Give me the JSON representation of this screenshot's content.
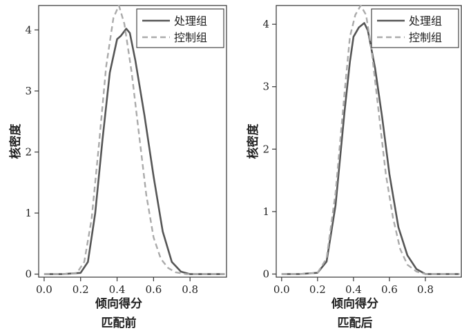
{
  "colors": {
    "treated": "#555555",
    "control": "#aaaaaa",
    "axis": "#333333"
  },
  "chart_data": [
    {
      "type": "line",
      "subtitle": "匹配前",
      "xlabel": "倾向得分",
      "ylabel": "核密度",
      "xlim": [
        -0.03,
        1.0
      ],
      "ylim": [
        -0.05,
        4.4
      ],
      "xticks": [
        "0.0",
        "0.2",
        "0.4",
        "0.6",
        "0.8"
      ],
      "yticks": [
        "0",
        "1",
        "2",
        "3",
        "4"
      ],
      "legend": "top-right",
      "series": [
        {
          "name": "处理组",
          "style": "solid",
          "x": [
            0.0,
            0.1,
            0.2,
            0.24,
            0.28,
            0.32,
            0.36,
            0.4,
            0.42,
            0.45,
            0.47,
            0.5,
            0.55,
            0.6,
            0.65,
            0.7,
            0.75,
            0.8,
            0.9,
            0.99
          ],
          "y": [
            0.0,
            0.0,
            0.02,
            0.2,
            1.0,
            2.2,
            3.3,
            3.85,
            3.9,
            4.02,
            3.95,
            3.5,
            2.6,
            1.6,
            0.7,
            0.2,
            0.04,
            0.0,
            0.0,
            0.0
          ]
        },
        {
          "name": "控制组",
          "style": "dashed",
          "x": [
            0.0,
            0.1,
            0.18,
            0.22,
            0.26,
            0.3,
            0.34,
            0.38,
            0.41,
            0.44,
            0.48,
            0.52,
            0.56,
            0.6,
            0.64,
            0.68,
            0.72,
            0.78,
            0.9,
            0.99
          ],
          "y": [
            0.0,
            0.0,
            0.02,
            0.2,
            0.9,
            2.1,
            3.4,
            4.2,
            4.4,
            4.1,
            3.3,
            2.3,
            1.3,
            0.6,
            0.25,
            0.1,
            0.03,
            0.0,
            0.0,
            0.0
          ]
        }
      ]
    },
    {
      "type": "line",
      "subtitle": "匹配后",
      "xlabel": "倾向得分",
      "ylabel": "核密度",
      "xlim": [
        -0.03,
        1.0
      ],
      "ylim": [
        -0.05,
        4.3
      ],
      "xticks": [
        "0.0",
        "0.2",
        "0.4",
        "0.6",
        "0.8"
      ],
      "yticks": [
        "0",
        "1",
        "2",
        "3",
        "4"
      ],
      "legend": "top-right",
      "series": [
        {
          "name": "处理组",
          "style": "solid",
          "x": [
            0.0,
            0.1,
            0.2,
            0.25,
            0.3,
            0.35,
            0.38,
            0.4,
            0.43,
            0.46,
            0.48,
            0.52,
            0.56,
            0.6,
            0.65,
            0.7,
            0.75,
            0.8,
            0.9,
            0.99
          ],
          "y": [
            0.0,
            0.0,
            0.02,
            0.2,
            1.1,
            2.6,
            3.4,
            3.8,
            3.95,
            4.02,
            3.9,
            3.3,
            2.5,
            1.6,
            0.75,
            0.3,
            0.08,
            0.0,
            0.0,
            0.0
          ]
        },
        {
          "name": "控制组",
          "style": "dashed",
          "x": [
            0.0,
            0.1,
            0.2,
            0.25,
            0.3,
            0.35,
            0.38,
            0.41,
            0.44,
            0.47,
            0.5,
            0.54,
            0.58,
            0.62,
            0.66,
            0.7,
            0.75,
            0.8,
            0.9,
            0.99
          ],
          "y": [
            0.0,
            0.0,
            0.02,
            0.25,
            1.3,
            2.9,
            3.8,
            4.15,
            4.3,
            4.15,
            3.6,
            2.6,
            1.6,
            0.9,
            0.4,
            0.15,
            0.04,
            0.0,
            0.0,
            0.0
          ]
        }
      ]
    }
  ]
}
